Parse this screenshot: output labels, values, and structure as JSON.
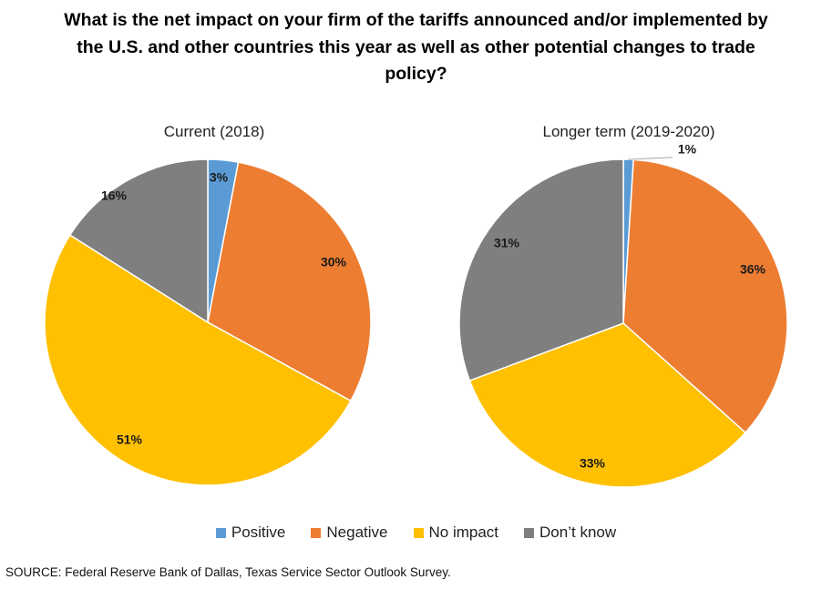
{
  "title": "What is the net impact on your firm of the tariffs announced and/or implemented by the U.S. and other countries this year as well as other potential changes to trade policy?",
  "colors": {
    "Positive": "#5b9bd5",
    "Negative": "#ed7d31",
    "No impact": "#ffc000",
    "Don’t know": "#7f7f7f"
  },
  "legend": [
    "Positive",
    "Negative",
    "No impact",
    "Don’t know"
  ],
  "source": "SOURCE: Federal Reserve Bank of Dallas, Texas Service Sector Outlook Survey.",
  "chart_data": [
    {
      "type": "pie",
      "title": "Current (2018)",
      "categories": [
        "Positive",
        "Negative",
        "No impact",
        "Don’t know"
      ],
      "values": [
        3,
        30,
        51,
        16
      ],
      "labels": [
        "3%",
        "30%",
        "51%",
        "16%"
      ]
    },
    {
      "type": "pie",
      "title": "Longer term (2019-2020)",
      "categories": [
        "Positive",
        "Negative",
        "No impact",
        "Don’t know"
      ],
      "values": [
        1,
        36,
        33,
        31
      ],
      "labels": [
        "1%",
        "36%",
        "33%",
        "31%"
      ]
    }
  ]
}
